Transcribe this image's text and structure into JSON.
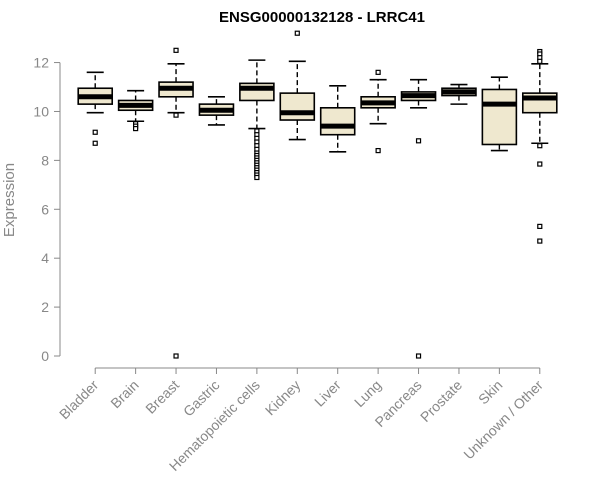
{
  "chart_data": {
    "type": "box",
    "title": "ENSG00000132128 - LRRC41",
    "xlabel": "",
    "ylabel": "Expression",
    "ylim": [
      0,
      12.8
    ],
    "yticks": [
      0,
      2,
      4,
      6,
      8,
      10,
      12
    ],
    "box_fill": "#efe8cf",
    "categories": [
      "Bladder",
      "Brain",
      "Breast",
      "Gastric",
      "Hematopoietic cells",
      "Kidney",
      "Liver",
      "Lung",
      "Pancreas",
      "Prostate",
      "Skin",
      "Unknown / Other"
    ],
    "series": [
      {
        "whisker_low": 9.95,
        "q1": 10.3,
        "median": 10.6,
        "q3": 10.95,
        "whisker_high": 11.6,
        "outliers": [
          9.15,
          8.7
        ]
      },
      {
        "whisker_low": 9.6,
        "q1": 10.05,
        "median": 10.25,
        "q3": 10.45,
        "whisker_high": 10.85,
        "outliers": [
          9.5,
          9.4,
          9.3
        ]
      },
      {
        "whisker_low": 9.95,
        "q1": 10.6,
        "median": 10.95,
        "q3": 11.2,
        "whisker_high": 11.95,
        "outliers": [
          12.5,
          9.85,
          0.0
        ]
      },
      {
        "whisker_low": 9.45,
        "q1": 9.85,
        "median": 10.05,
        "q3": 10.3,
        "whisker_high": 10.6,
        "outliers": []
      },
      {
        "whisker_low": 9.3,
        "q1": 10.45,
        "median": 10.95,
        "q3": 11.15,
        "whisker_high": 12.1,
        "outliers": [
          9.2,
          9.05,
          8.9,
          8.75,
          8.6,
          8.45,
          8.3,
          8.2,
          8.1,
          8.0,
          7.9,
          7.8,
          7.7,
          7.6,
          7.5,
          7.4,
          7.3
        ]
      },
      {
        "whisker_low": 8.85,
        "q1": 9.65,
        "median": 9.95,
        "q3": 10.75,
        "whisker_high": 12.05,
        "outliers": [
          13.2
        ]
      },
      {
        "whisker_low": 8.35,
        "q1": 9.05,
        "median": 9.4,
        "q3": 10.15,
        "whisker_high": 11.05,
        "outliers": []
      },
      {
        "whisker_low": 9.5,
        "q1": 10.15,
        "median": 10.35,
        "q3": 10.6,
        "whisker_high": 11.3,
        "outliers": [
          11.6,
          8.4
        ]
      },
      {
        "whisker_low": 10.15,
        "q1": 10.45,
        "median": 10.65,
        "q3": 10.8,
        "whisker_high": 11.3,
        "outliers": [
          8.8,
          0.0
        ]
      },
      {
        "whisker_low": 10.3,
        "q1": 10.65,
        "median": 10.8,
        "q3": 10.95,
        "whisker_high": 11.1,
        "outliers": []
      },
      {
        "whisker_low": 8.4,
        "q1": 8.65,
        "median": 10.3,
        "q3": 10.9,
        "whisker_high": 11.4,
        "outliers": []
      },
      {
        "whisker_low": 8.7,
        "q1": 9.95,
        "median": 10.55,
        "q3": 10.75,
        "whisker_high": 11.95,
        "outliers": [
          12.45,
          12.35,
          12.2,
          12.05,
          8.6,
          7.85,
          5.3,
          4.7
        ]
      }
    ]
  }
}
